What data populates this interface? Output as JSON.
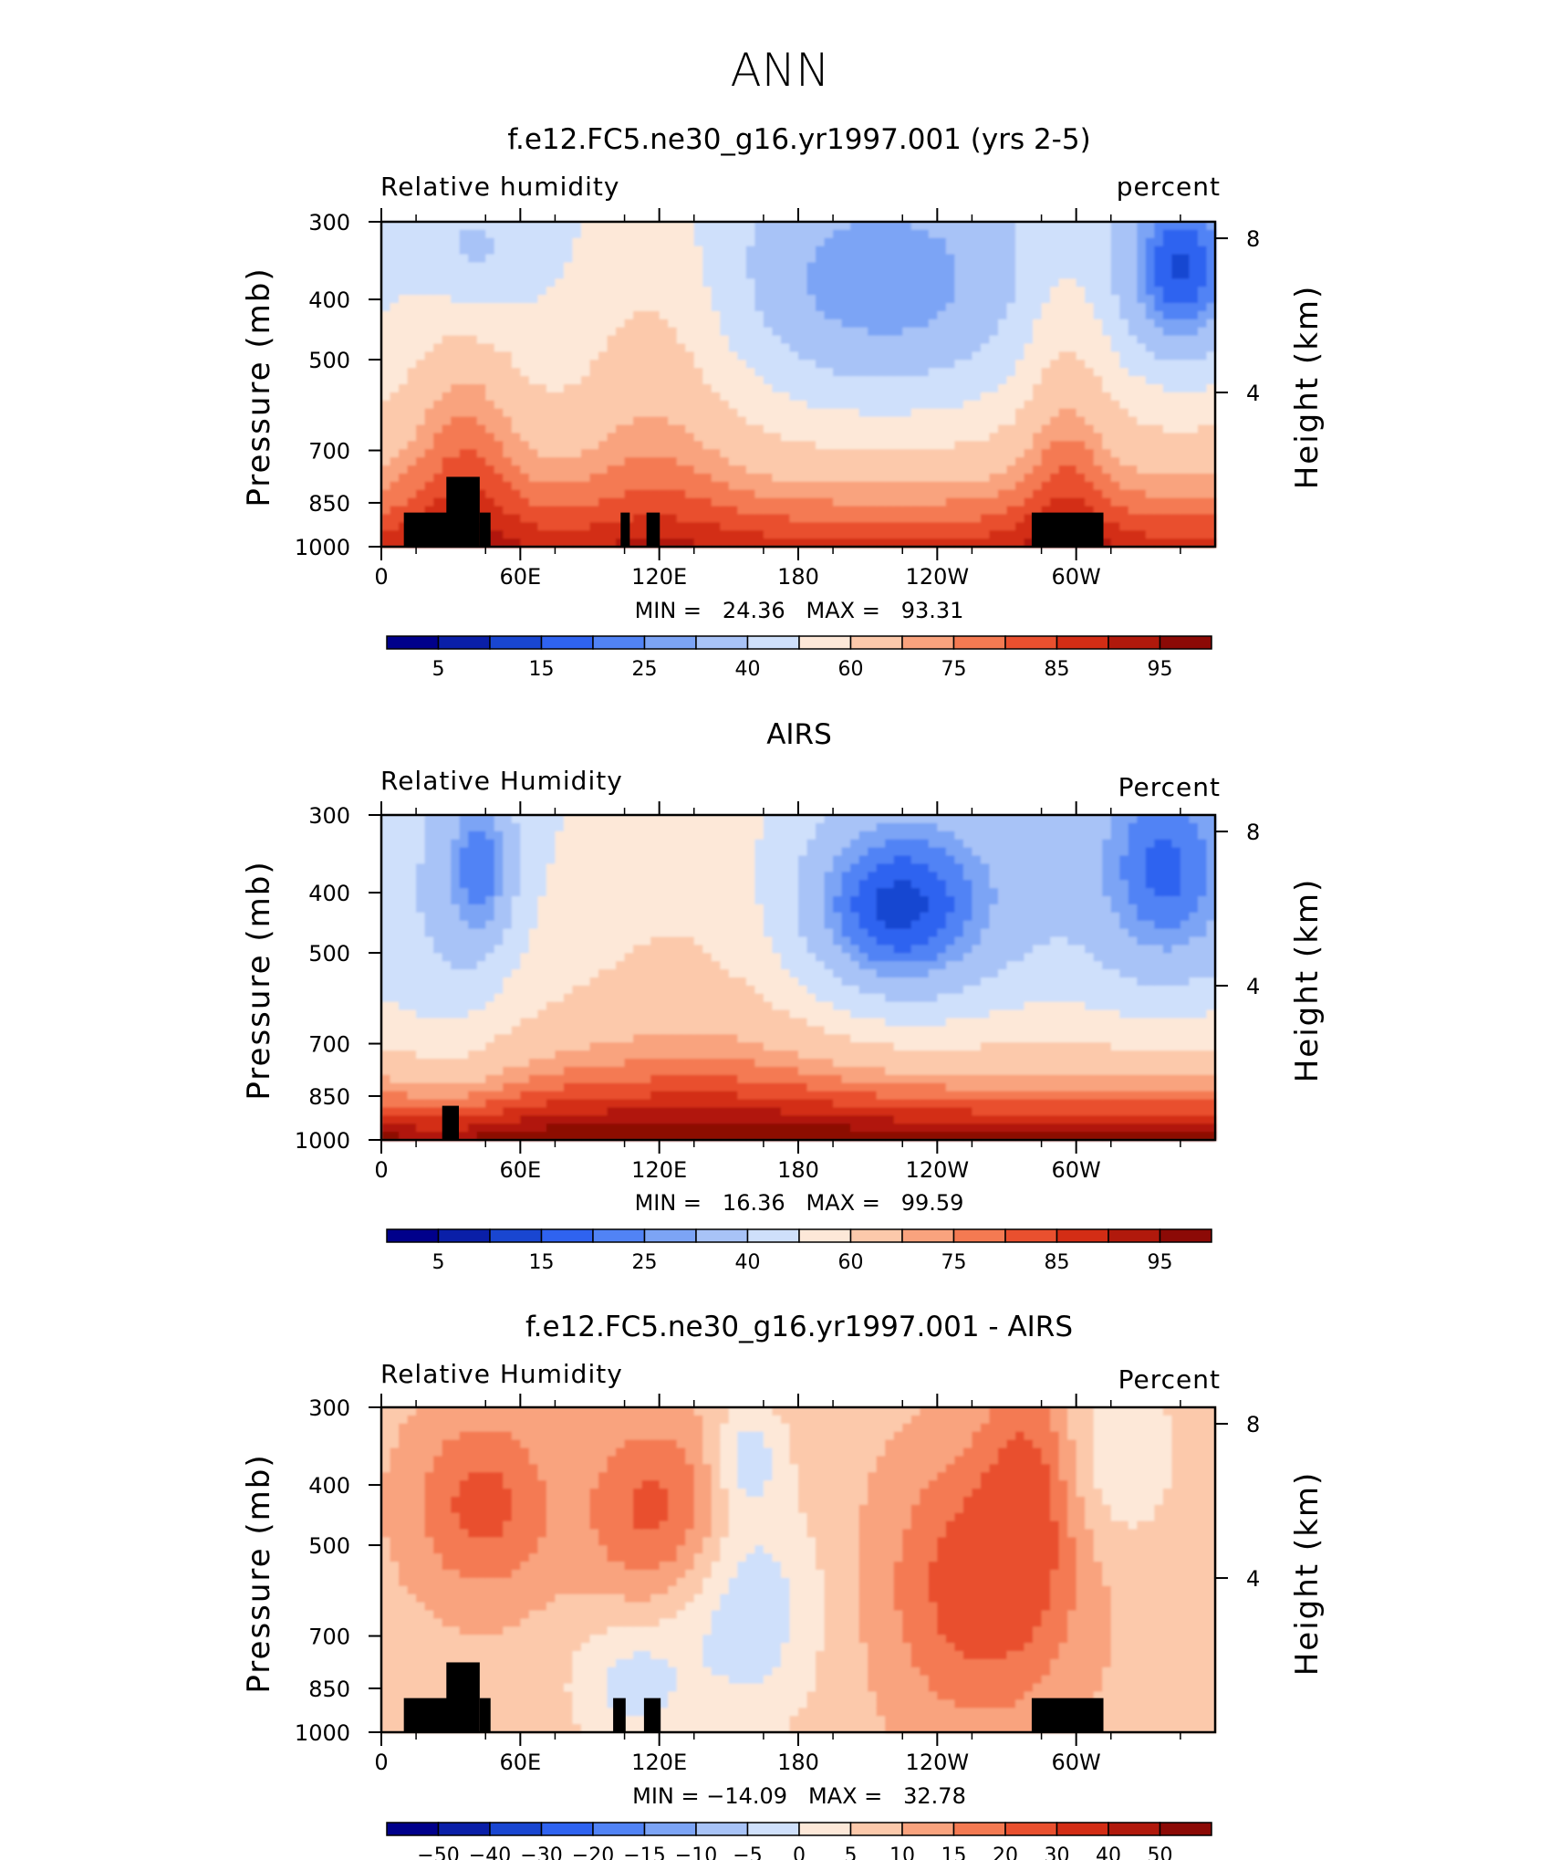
{
  "figure": {
    "title": "ANN"
  },
  "chart_data": [
    {
      "type": "heatmap",
      "title": "f.e12.FC5.ne30_g16.yr1997.001 (yrs 2-5)",
      "left_label": "Relative humidity",
      "right_label": "percent",
      "xlabel": "",
      "ylabel": "Pressure (mb)",
      "y2label": "Height (km)",
      "xticks": [
        "0",
        "60E",
        "120E",
        "180",
        "120W",
        "60W"
      ],
      "yticks": [
        "300",
        "400",
        "500",
        "700",
        "850",
        "1000"
      ],
      "y2ticks": [
        "8",
        "4"
      ],
      "stats_label": "MIN =   24.36   MAX =   93.31",
      "min": 24.36,
      "max": 93.31,
      "colorbar": {
        "labels": [
          "5",
          "15",
          "25",
          "40",
          "60",
          "75",
          "85",
          "95"
        ],
        "colors": [
          "#00008b",
          "#0a1fa8",
          "#1946d1",
          "#2f63f0",
          "#5183f5",
          "#7ca4f5",
          "#a8c3f7",
          "#cfe0fb",
          "#fde8d8",
          "#fcc9ab",
          "#f9a37e",
          "#f47a52",
          "#e9502f",
          "#d32d15",
          "#b1190c",
          "#8c0a06"
        ]
      },
      "color_levels": [
        0,
        5,
        10,
        15,
        20,
        25,
        30,
        40,
        50,
        60,
        70,
        75,
        80,
        85,
        90,
        95
      ]
    },
    {
      "type": "heatmap",
      "title": "AIRS",
      "left_label": "Relative Humidity",
      "right_label": "Percent",
      "xlabel": "",
      "ylabel": "Pressure (mb)",
      "y2label": "Height (km)",
      "xticks": [
        "0",
        "60E",
        "120E",
        "180",
        "120W",
        "60W"
      ],
      "yticks": [
        "300",
        "400",
        "500",
        "700",
        "850",
        "1000"
      ],
      "y2ticks": [
        "8",
        "4"
      ],
      "stats_label": "MIN =   16.36   MAX =   99.59",
      "min": 16.36,
      "max": 99.59,
      "colorbar": {
        "labels": [
          "5",
          "15",
          "25",
          "40",
          "60",
          "75",
          "85",
          "95"
        ],
        "colors": [
          "#00008b",
          "#0a1fa8",
          "#1946d1",
          "#2f63f0",
          "#5183f5",
          "#7ca4f5",
          "#a8c3f7",
          "#cfe0fb",
          "#fde8d8",
          "#fcc9ab",
          "#f9a37e",
          "#f47a52",
          "#e9502f",
          "#d32d15",
          "#b1190c",
          "#8c0a06"
        ]
      },
      "color_levels": [
        0,
        5,
        10,
        15,
        20,
        25,
        30,
        40,
        50,
        60,
        70,
        75,
        80,
        85,
        90,
        95
      ]
    },
    {
      "type": "heatmap",
      "title": "f.e12.FC5.ne30_g16.yr1997.001 - AIRS",
      "left_label": "Relative Humidity",
      "right_label": "Percent",
      "xlabel": "",
      "ylabel": "Pressure (mb)",
      "y2label": "Height (km)",
      "xticks": [
        "0",
        "60E",
        "120E",
        "180",
        "120W",
        "60W"
      ],
      "yticks": [
        "300",
        "400",
        "500",
        "700",
        "850",
        "1000"
      ],
      "y2ticks": [
        "8",
        "4"
      ],
      "stats_label": "MIN = −14.09   MAX =   32.78",
      "min": -14.09,
      "max": 32.78,
      "colorbar": {
        "labels": [
          "−50",
          "−40",
          "−30",
          "−20",
          "−15",
          "−10",
          "−5",
          "0",
          "5",
          "10",
          "15",
          "20",
          "30",
          "40",
          "50"
        ],
        "colors": [
          "#00008b",
          "#0a1fa8",
          "#1946d1",
          "#2f63f0",
          "#5183f5",
          "#7ca4f5",
          "#a8c3f7",
          "#cfe0fb",
          "#fde8d8",
          "#fcc9ab",
          "#f9a37e",
          "#f47a52",
          "#e9502f",
          "#d32d15",
          "#b1190c",
          "#8c0a06"
        ]
      },
      "color_levels": [
        -60,
        -50,
        -40,
        -30,
        -20,
        -15,
        -10,
        -5,
        0,
        5,
        10,
        15,
        20,
        30,
        40,
        50
      ]
    }
  ]
}
